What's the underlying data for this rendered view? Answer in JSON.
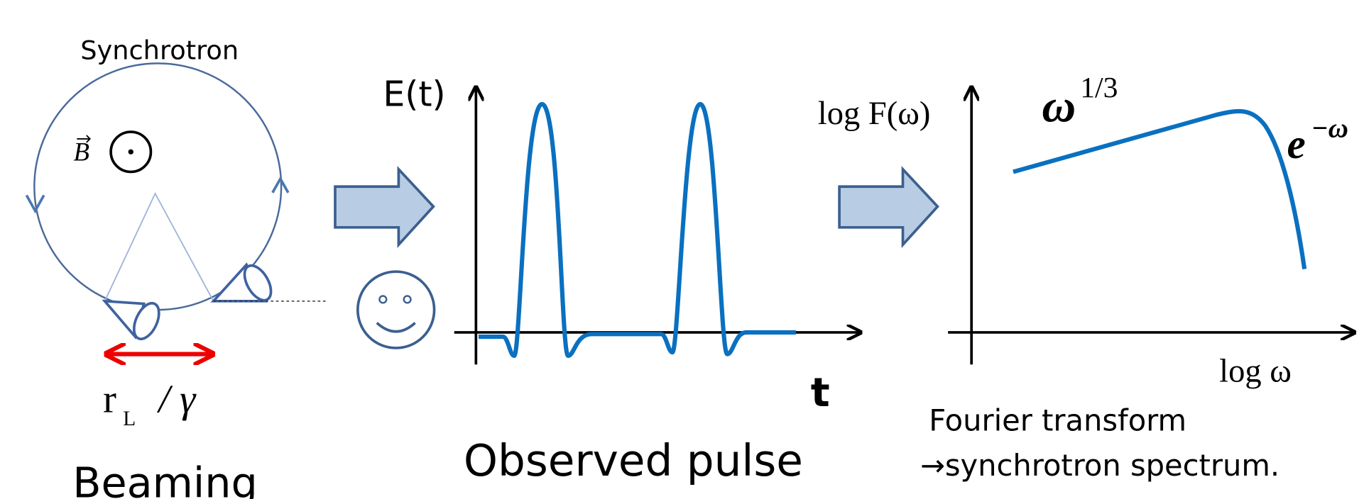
{
  "beaming": {
    "label": "Synchrotron",
    "field": "B",
    "width_base": "r",
    "width_sub": "L",
    "width_rest": "/ γ",
    "caption": "Beaming"
  },
  "pulse": {
    "y_label": "E(t)",
    "x_label": "t",
    "caption": "Observed pulse"
  },
  "spectrum": {
    "y_label": "log F(ω)",
    "low_base": "ω",
    "low_exp": "1/3",
    "high_base": "e",
    "high_exp": "−ω",
    "x_label": "log ω",
    "caption_line1": "Fourier transform",
    "caption_line2": "→synchrotron spectrum."
  }
}
